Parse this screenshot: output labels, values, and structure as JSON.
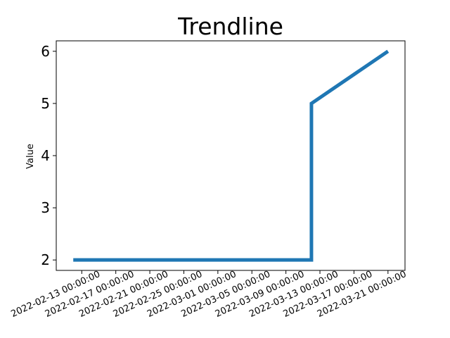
{
  "chart_data": {
    "type": "line",
    "title": "Trendline",
    "xlabel": "",
    "ylabel": "Value",
    "x_tick_labels": [
      "2022-02-13 00:00:00",
      "2022-02-17 00:00:00",
      "2022-02-21 00:00:00",
      "2022-02-25 00:00:00",
      "2022-03-01 00:00:00",
      "2022-03-05 00:00:00",
      "2022-03-09 00:00:00",
      "2022-03-13 00:00:00",
      "2022-03-17 00:00:00",
      "2022-03-21 00:00:00"
    ],
    "y_ticks": [
      2,
      3,
      4,
      5,
      6
    ],
    "ylim": [
      1.8,
      6.2
    ],
    "xlim": [
      "2022-02-10",
      "2022-03-23"
    ],
    "grid": false,
    "series": [
      {
        "color": "#1f77b4",
        "points": [
          {
            "x": "2022-02-12",
            "y": 2
          },
          {
            "x": "2022-03-12",
            "y": 2
          },
          {
            "x": "2022-03-12",
            "y": 5
          },
          {
            "x": "2022-03-21",
            "y": 6
          }
        ]
      }
    ]
  }
}
